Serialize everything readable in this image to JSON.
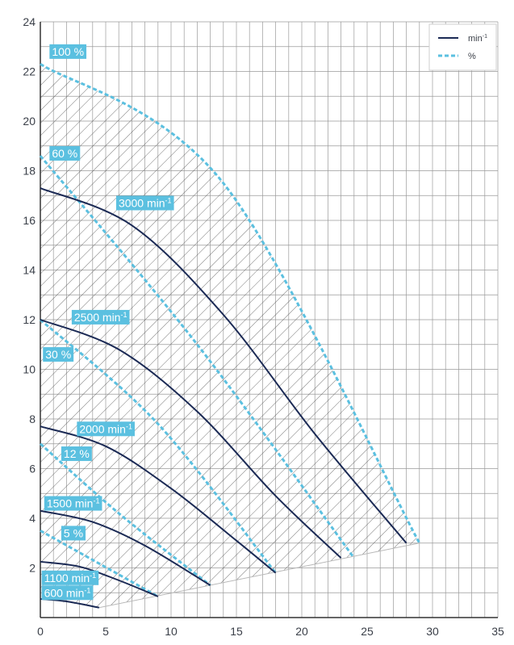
{
  "chart_data": {
    "type": "line",
    "xlim": [
      0,
      35
    ],
    "ylim": [
      0,
      24
    ],
    "x_ticks": [
      0,
      5,
      10,
      15,
      20,
      25,
      30,
      35
    ],
    "y_ticks": [
      2,
      4,
      6,
      8,
      10,
      12,
      14,
      16,
      18,
      20,
      22,
      24
    ],
    "grid": true,
    "legend": {
      "placement": "top-right",
      "entries": [
        {
          "label": "min",
          "superscript": "-1",
          "style": "solid",
          "color": "#1b2a55"
        },
        {
          "label": "%",
          "superscript": "",
          "style": "dashed",
          "color": "#5bc0e0"
        }
      ]
    },
    "colors": {
      "speed": "#1b2a55",
      "percent": "#5bc0e0",
      "grid": "#9a9a9a",
      "hatch": "#555555",
      "tag_bg": "#5bc0e0"
    },
    "speed_curves": [
      {
        "label": "600 min",
        "sup": "-1",
        "points": [
          [
            0,
            0.75
          ],
          [
            2,
            0.65
          ],
          [
            4.5,
            0.4
          ]
        ]
      },
      {
        "label": "1100 min",
        "sup": "-1",
        "points": [
          [
            0,
            2.25
          ],
          [
            3,
            2.05
          ],
          [
            6,
            1.5
          ],
          [
            9,
            0.85
          ]
        ]
      },
      {
        "label": "1500 min",
        "sup": "-1",
        "points": [
          [
            0,
            4.3
          ],
          [
            4,
            3.85
          ],
          [
            8,
            2.9
          ],
          [
            13,
            1.3
          ]
        ]
      },
      {
        "label": "2000 min",
        "sup": "-1",
        "points": [
          [
            0,
            7.7
          ],
          [
            5,
            6.9
          ],
          [
            10,
            5.2
          ],
          [
            15,
            3.1
          ],
          [
            18,
            1.8
          ]
        ]
      },
      {
        "label": "2500 min",
        "sup": "-1",
        "points": [
          [
            0,
            12.0
          ],
          [
            6,
            10.8
          ],
          [
            12,
            8.3
          ],
          [
            18,
            4.9
          ],
          [
            23,
            2.4
          ]
        ]
      },
      {
        "label": "3000 min",
        "sup": "-1",
        "points": [
          [
            0,
            17.3
          ],
          [
            7,
            15.8
          ],
          [
            14,
            12.2
          ],
          [
            21,
            7.4
          ],
          [
            28,
            3.0
          ]
        ]
      }
    ],
    "percent_curves": [
      {
        "label": "5 %",
        "points": [
          [
            0,
            3.5
          ],
          [
            9,
            0.85
          ]
        ]
      },
      {
        "label": "12 %",
        "points": [
          [
            0,
            7.0
          ],
          [
            6,
            4.2
          ],
          [
            13,
            1.3
          ]
        ]
      },
      {
        "label": "30 %",
        "points": [
          [
            0,
            12.0
          ],
          [
            9,
            7.8
          ],
          [
            18,
            1.8
          ]
        ]
      },
      {
        "label": "60 %",
        "points": [
          [
            0,
            18.6
          ],
          [
            12,
            11.0
          ],
          [
            24,
            2.4
          ]
        ]
      },
      {
        "label": "100 %",
        "points": [
          [
            0,
            22.3
          ],
          [
            14,
            17.5
          ],
          [
            29,
            3.0
          ]
        ]
      }
    ],
    "hatched_region": {
      "upper": [
        [
          0,
          22.3
        ],
        [
          14,
          17.5
        ],
        [
          29,
          3.0
        ]
      ],
      "lower": [
        [
          29,
          3.0
        ],
        [
          4.5,
          0.4
        ]
      ],
      "left": [
        [
          4.5,
          0.4
        ],
        [
          0,
          0.75
        ]
      ]
    },
    "tags": [
      {
        "text": "100 %",
        "x": 0.7,
        "y": 22.8
      },
      {
        "text": "60 %",
        "x": 0.7,
        "y": 18.7
      },
      {
        "text": "3000 min",
        "sup": "-1",
        "x": 5.8,
        "y": 16.7
      },
      {
        "text": "2500 min",
        "sup": "-1",
        "x": 2.4,
        "y": 12.1
      },
      {
        "text": "30 %",
        "x": 0.2,
        "y": 10.6
      },
      {
        "text": "2000 min",
        "sup": "-1",
        "x": 2.8,
        "y": 7.6
      },
      {
        "text": "12 %",
        "x": 1.6,
        "y": 6.6
      },
      {
        "text": "1500 min",
        "sup": "-1",
        "x": 0.3,
        "y": 4.6
      },
      {
        "text": "5 %",
        "x": 1.6,
        "y": 3.4
      },
      {
        "text": "1100 min",
        "sup": "-1",
        "x": 0.1,
        "y": 1.6
      },
      {
        "text": "600 min",
        "sup": "-1",
        "x": 0.1,
        "y": 1.0
      }
    ]
  }
}
